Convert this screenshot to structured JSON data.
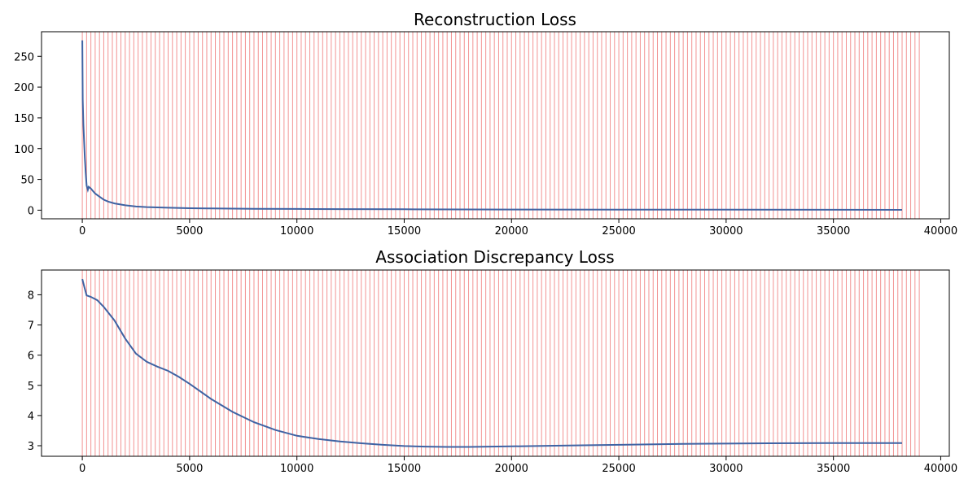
{
  "colors": {
    "line": "#3f63a3",
    "epoch_markers": "#f08080",
    "axes": "#000000",
    "background": "#ffffff"
  },
  "chart_data": [
    {
      "type": "line",
      "title": "Reconstruction Loss",
      "xlabel": "",
      "ylabel": "",
      "xlim": [
        -1900,
        40400
      ],
      "ylim": [
        -14,
        290
      ],
      "xticks": [
        0,
        5000,
        10000,
        15000,
        20000,
        25000,
        30000,
        35000,
        40000
      ],
      "yticks": [
        0,
        50,
        100,
        150,
        200,
        250
      ],
      "grid": false,
      "epoch_markers": {
        "start": 0,
        "step": 200,
        "end": 39000
      },
      "series": [
        {
          "x": [
            0,
            20,
            50,
            80,
            120,
            160,
            200,
            260,
            300,
            400,
            500,
            600,
            800,
            1000,
            1200,
            1500,
            2000,
            2500,
            3000,
            4000,
            5000,
            6000,
            8000,
            10000,
            12000,
            15000,
            20000,
            25000,
            30000,
            35000,
            38200
          ],
          "y": [
            276,
            180,
            140,
            115,
            85,
            60,
            40,
            33,
            38,
            35,
            31,
            27,
            22,
            17,
            14,
            11,
            8,
            6,
            5,
            4,
            3.2,
            2.8,
            2.3,
            2,
            1.7,
            1.4,
            1.1,
            0.9,
            0.8,
            0.7,
            0.6
          ]
        }
      ]
    },
    {
      "type": "line",
      "title": "Association Discrepancy Loss",
      "xlabel": "",
      "ylabel": "",
      "xlim": [
        -1900,
        40400
      ],
      "ylim": [
        2.65,
        8.82
      ],
      "xticks": [
        0,
        5000,
        10000,
        15000,
        20000,
        25000,
        30000,
        35000,
        40000
      ],
      "yticks": [
        3,
        4,
        5,
        6,
        7,
        8
      ],
      "grid": false,
      "epoch_markers": {
        "start": 0,
        "step": 200,
        "end": 39000
      },
      "series": [
        {
          "x": [
            0,
            100,
            200,
            400,
            700,
            1000,
            1500,
            2000,
            2500,
            3000,
            3500,
            4000,
            4500,
            5000,
            6000,
            7000,
            8000,
            9000,
            10000,
            11000,
            12000,
            13000,
            14000,
            15000,
            16000,
            17000,
            18000,
            20000,
            22000,
            25000,
            28000,
            30000,
            32000,
            35000,
            38200
          ],
          "y": [
            8.52,
            8.25,
            7.98,
            7.93,
            7.82,
            7.6,
            7.15,
            6.55,
            6.05,
            5.78,
            5.62,
            5.48,
            5.28,
            5.05,
            4.55,
            4.12,
            3.78,
            3.52,
            3.33,
            3.22,
            3.14,
            3.08,
            3.03,
            2.99,
            2.97,
            2.96,
            2.96,
            2.98,
            3.0,
            3.03,
            3.06,
            3.07,
            3.08,
            3.09,
            3.09
          ]
        }
      ]
    }
  ]
}
